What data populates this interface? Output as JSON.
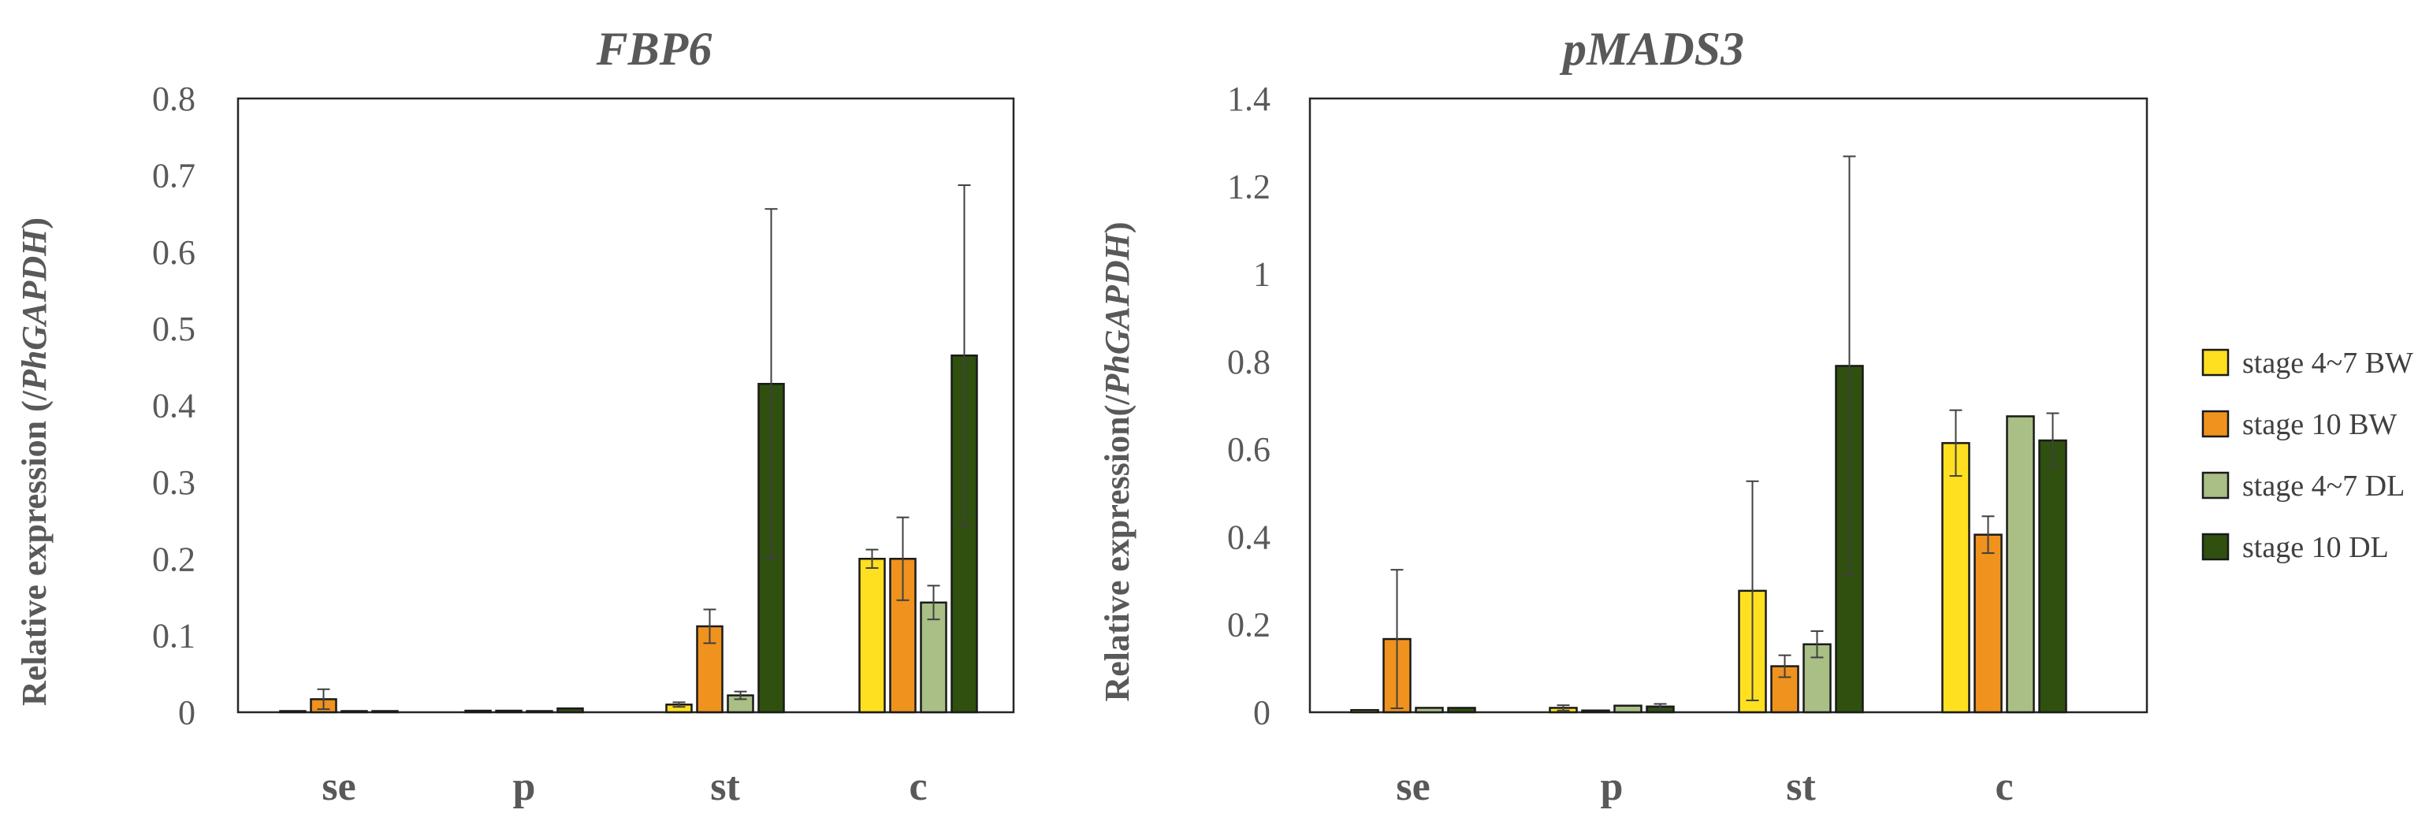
{
  "colors": {
    "stage 4~7 BW": "#FFE020",
    "stage 10 BW": "#F0921E",
    "stage 4~7 DL": "#A9BF86",
    "stage 10 DL": "#2F500E"
  },
  "legend": {
    "items": [
      {
        "label": "stage 4~7 BW",
        "color": "#FFE020"
      },
      {
        "label": "stage 10 BW",
        "color": "#F0921E"
      },
      {
        "label": "stage 4~7 DL",
        "color": "#A9BF86"
      },
      {
        "label": "stage 10 DL",
        "color": "#2F500E"
      }
    ],
    "placement": "right"
  },
  "chart_data": [
    {
      "type": "bar",
      "title": "FBP6",
      "ylabel_prefix": "Relative expression (/",
      "ylabel_italic": "PhGAPDH",
      "ylabel_suffix": ")",
      "xlabel": "",
      "categories": [
        "se",
        "p",
        "st",
        "c"
      ],
      "ylim": [
        0,
        0.8
      ],
      "yticks": [
        "0",
        "0.1",
        "0.2",
        "0.3",
        "0.4",
        "0.5",
        "0.6",
        "0.7",
        "0.8"
      ],
      "grid": false,
      "series": [
        {
          "name": "stage 4~7 BW",
          "values": [
            0.0,
            0.002,
            0.01,
            0.2
          ],
          "errors": [
            0.0,
            0.0,
            0.003,
            0.012
          ]
        },
        {
          "name": "stage 10 BW",
          "values": [
            0.017,
            0.002,
            0.112,
            0.2
          ],
          "errors": [
            0.013,
            0.0,
            0.022,
            0.054
          ]
        },
        {
          "name": "stage 4~7 DL",
          "values": [
            0.0,
            0.0,
            0.022,
            0.143
          ],
          "errors": [
            0.0,
            0.0,
            0.005,
            0.022
          ]
        },
        {
          "name": "stage 10 DL",
          "values": [
            0.0,
            0.005,
            0.428,
            0.465
          ],
          "errors": [
            0.0,
            0.0,
            0.228,
            0.222
          ]
        }
      ]
    },
    {
      "type": "bar",
      "title": "pMADS3",
      "ylabel_prefix": "Relative expression(/",
      "ylabel_italic": "PhGAPDH",
      "ylabel_suffix": ")",
      "xlabel": "",
      "categories": [
        "se",
        "p",
        "st",
        "c"
      ],
      "ylim": [
        0,
        1.4
      ],
      "yticks": [
        "0",
        "0.2",
        "0.4",
        "0.6",
        "0.8",
        "1",
        "1.2",
        "1.4"
      ],
      "grid": false,
      "series": [
        {
          "name": "stage 4~7 BW",
          "values": [
            0.005,
            0.01,
            0.277,
            0.614
          ],
          "errors": [
            0.0,
            0.006,
            0.25,
            0.075
          ]
        },
        {
          "name": "stage 10 BW",
          "values": [
            0.167,
            0.004,
            0.105,
            0.405
          ],
          "errors": [
            0.158,
            0.0,
            0.025,
            0.042
          ]
        },
        {
          "name": "stage 4~7 DL",
          "values": [
            0.01,
            0.015,
            0.155,
            0.675
          ],
          "errors": [
            0.0,
            0.0,
            0.03,
            0.0
          ]
        },
        {
          "name": "stage 10 DL",
          "values": [
            0.01,
            0.013,
            0.79,
            0.62
          ],
          "errors": [
            0.0,
            0.006,
            0.478,
            0.062
          ]
        }
      ]
    }
  ]
}
